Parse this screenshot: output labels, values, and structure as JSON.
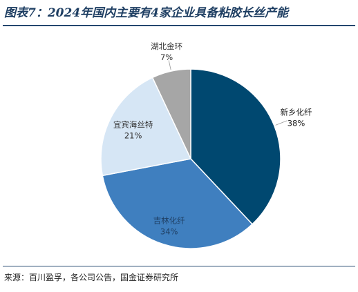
{
  "figure": {
    "title": "图表7：2024年国内主要有4家企业具备粘胶长丝产能",
    "source": "来源：百川盈孚，各公司公告，国金证券研究所"
  },
  "chart_data": {
    "type": "pie",
    "title": "",
    "slices": [
      {
        "label": "新乡化纤",
        "value": 38,
        "value_label": "38%",
        "color": "#004870",
        "text_color": "#222222"
      },
      {
        "label": "吉林化纤",
        "value": 34,
        "value_label": "34%",
        "color": "#3f7fbf",
        "text_color": "#1f3f63"
      },
      {
        "label": "宜宾海丝特",
        "value": 21,
        "value_label": "21%",
        "color": "#d6e6f5",
        "text_color": "#333333"
      },
      {
        "label": "湖北金环",
        "value": 7,
        "value_label": "7%",
        "color": "#a6a6a6",
        "text_color": "#333333"
      }
    ],
    "start_angle": "12 o'clock, clockwise",
    "legend": "none"
  }
}
